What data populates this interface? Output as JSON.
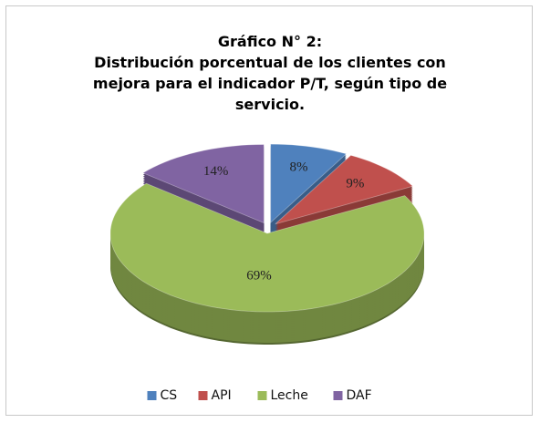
{
  "chart_data": {
    "type": "pie3d",
    "title": "Gráfico N° 2:",
    "subtitle": "Distribución  porcentual de los clientes con mejora para el indicador P/T, según tipo de servicio.",
    "categories": [
      "CS",
      "API",
      "Leche",
      "DAF"
    ],
    "values": [
      8,
      9,
      69,
      14
    ],
    "value_labels": [
      "8%",
      "9%",
      "69%",
      "14%"
    ],
    "colors": [
      "#4f81bd",
      "#c0504d",
      "#9bbb59",
      "#8064a2"
    ],
    "legend": "bottom"
  }
}
